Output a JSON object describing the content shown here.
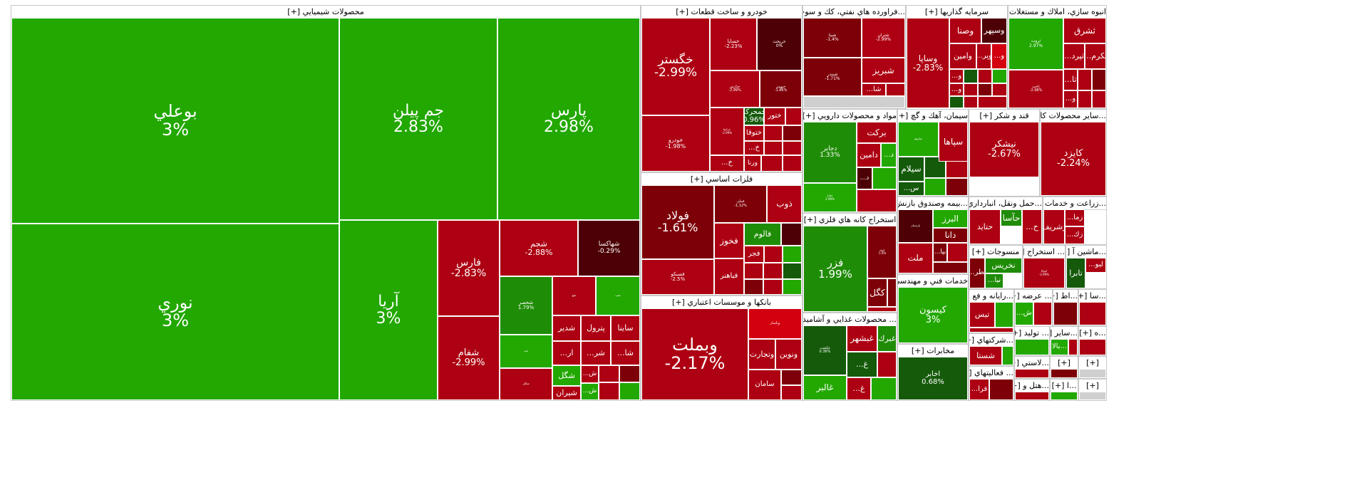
{
  "colors": {
    "strong_green": "#22a800",
    "green": "#1f8c07",
    "dark_green": "#145a0a",
    "strong_red": "#d30010",
    "red": "#ad0012",
    "dark_red": "#7d0008",
    "darkest_red": "#4d0005",
    "gray": "#cfcfcf"
  },
  "sectors": [
    {
      "id": "chem",
      "label": "محصولات شيميايي [+]",
      "tiles": [
        {
          "name": "بوعلي",
          "pct": "3%",
          "c": "strong_green"
        },
        {
          "name": "جم پيلن",
          "pct": "2.83%",
          "c": "strong_green"
        },
        {
          "name": "پارس",
          "pct": "2.98%",
          "c": "strong_green"
        },
        {
          "name": "نوري",
          "pct": "3%",
          "c": "strong_green"
        },
        {
          "name": "آريا",
          "pct": "3%",
          "c": "strong_green"
        },
        {
          "name": "فارس",
          "pct": "-2.83%",
          "c": "red"
        },
        {
          "name": "شفام",
          "pct": "-2.99%",
          "c": "red"
        },
        {
          "name": "شجم",
          "pct": "-2.88%",
          "c": "red"
        },
        {
          "name": "شهاكسا",
          "pct": "-0.29%",
          "c": "darkest_red"
        },
        {
          "name": "شخصر",
          "pct": "1.79%",
          "c": "green"
        },
        {
          "name": "شغ",
          "pct": "",
          "c": "red"
        },
        {
          "name": "شپ",
          "pct": "",
          "c": "strong_green"
        },
        {
          "name": "شد",
          "pct": "",
          "c": "strong_green"
        },
        {
          "name": "شكلر",
          "pct": "",
          "c": "red"
        },
        {
          "name": "شدير",
          "pct": "",
          "c": "red"
        },
        {
          "name": "پترول",
          "pct": "",
          "c": "red"
        },
        {
          "name": "ساينا",
          "pct": "",
          "c": "red"
        },
        {
          "name": "...ار",
          "pct": "",
          "c": "red"
        },
        {
          "name": "...شر",
          "pct": "",
          "c": "red"
        },
        {
          "name": "...شا",
          "pct": "",
          "c": "red"
        },
        {
          "name": "شگل",
          "pct": "",
          "c": "strong_green"
        },
        {
          "name": "شيران",
          "pct": "",
          "c": "red"
        },
        {
          "name": "...ش",
          "pct": "",
          "c": "red"
        },
        {
          "name": "...ش",
          "pct": "",
          "c": "strong_green"
        }
      ]
    },
    {
      "id": "auto",
      "label": "خودرو و ساخت قطعات [+]",
      "tiles": [
        {
          "name": "خگستر",
          "pct": "-2.99%",
          "c": "red"
        },
        {
          "name": "خساپا",
          "pct": "-2.23%",
          "c": "red"
        },
        {
          "name": "خريخت",
          "pct": "0%",
          "c": "darkest_red"
        },
        {
          "name": "خپارس",
          "pct": "-2.99%",
          "c": "red"
        },
        {
          "name": "خبهمن",
          "pct": "-1.86%",
          "c": "dark_red"
        },
        {
          "name": "خودرو",
          "pct": "-1.98%",
          "c": "red"
        },
        {
          "name": "خراميا",
          "pct": "-2.99%",
          "c": "red"
        },
        {
          "name": "خمحركه",
          "pct": "0.96%",
          "c": "dark_green"
        },
        {
          "name": "ختور",
          "pct": "",
          "c": "red"
        },
        {
          "name": "ختوقا",
          "pct": "",
          "c": "red"
        },
        {
          "name": "...خ",
          "pct": "",
          "c": "red"
        },
        {
          "name": "...خ",
          "pct": "",
          "c": "red"
        },
        {
          "name": "ورنا",
          "pct": "",
          "c": "red"
        },
        {
          "name": "...خا",
          "pct": "",
          "c": "red"
        }
      ]
    },
    {
      "id": "metal",
      "label": "فلزات اساسي [+]",
      "tiles": [
        {
          "name": "فولاد",
          "pct": "-1.61%",
          "c": "dark_red"
        },
        {
          "name": "فملي",
          "pct": "-1.12%",
          "c": "dark_red"
        },
        {
          "name": "ذوب",
          "pct": "",
          "c": "red"
        },
        {
          "name": "فخوز",
          "pct": "",
          "c": "red"
        },
        {
          "name": "فالوم",
          "pct": "",
          "c": "green"
        },
        {
          "name": "فجر",
          "pct": "",
          "c": "red"
        },
        {
          "name": "فسبكو",
          "pct": "-2.5%",
          "c": "red"
        },
        {
          "name": "فباهنر",
          "pct": "",
          "c": "red"
        }
      ]
    },
    {
      "id": "bank",
      "label": "بانكها و موسسات اعتباري [+]",
      "tiles": [
        {
          "name": "وبملت",
          "pct": "-2.17%",
          "c": "red"
        },
        {
          "name": "وتجارت",
          "pct": "",
          "c": "red"
        },
        {
          "name": "ونوين",
          "pct": "",
          "c": "red"
        },
        {
          "name": "سامان",
          "pct": "",
          "c": "red"
        },
        {
          "name": "وپاسار",
          "pct": "",
          "c": "strong_red"
        }
      ]
    },
    {
      "id": "oil",
      "label": "...فراورده هاي نفتي، كك و سوخت ه [+]",
      "tiles": [
        {
          "name": "شپنا",
          "pct": "-1.4%",
          "c": "dark_red"
        },
        {
          "name": "شبندر",
          "pct": "-1.71%",
          "c": "dark_red"
        },
        {
          "name": "شتران",
          "pct": "-2.99%",
          "c": "red"
        },
        {
          "name": "شبريز",
          "pct": "",
          "c": "red"
        },
        {
          "name": "...شا",
          "pct": "",
          "c": "red"
        }
      ]
    },
    {
      "id": "invest",
      "label": "سرمايه گذاريها [+]",
      "tiles": [
        {
          "name": "وساپا",
          "pct": "-2.83%",
          "c": "red"
        },
        {
          "name": "وصنا",
          "pct": "",
          "c": "red"
        },
        {
          "name": "وسپهر",
          "pct": "",
          "c": "darkest_red"
        },
        {
          "name": "وامين",
          "pct": "",
          "c": "red"
        },
        {
          "name": "...وپر",
          "pct": "",
          "c": "red"
        },
        {
          "name": "...و",
          "pct": "",
          "c": "strong_red"
        },
        {
          "name": "...و",
          "pct": "",
          "c": "red"
        },
        {
          "name": "...و",
          "pct": "",
          "c": "red"
        }
      ]
    },
    {
      "id": "build",
      "label": "انبوه سازي، املاك و مستغلات [+]",
      "tiles": [
        {
          "name": "ثروت",
          "pct": "2.97%",
          "c": "strong_green"
        },
        {
          "name": "ثشرق",
          "pct": "",
          "c": "red"
        },
        {
          "name": "...ثپرد",
          "pct": "",
          "c": "red"
        },
        {
          "name": "...ثكرم",
          "pct": "",
          "c": "red"
        },
        {
          "name": "ثاخت",
          "pct": "-2.98%",
          "c": "red"
        },
        {
          "name": "...ثا",
          "pct": "",
          "c": "red"
        },
        {
          "name": "...و",
          "pct": "",
          "c": "red"
        }
      ]
    },
    {
      "id": "pharma",
      "label": "مواد و محصولات دارويي [+]",
      "tiles": [
        {
          "name": "دجابر",
          "pct": "1.33%",
          "c": "green"
        },
        {
          "name": "بركت",
          "pct": "",
          "c": "red"
        },
        {
          "name": "دامين",
          "pct": "",
          "c": "red"
        },
        {
          "name": "...د",
          "pct": "",
          "c": "strong_green"
        },
        {
          "name": "دفارا",
          "pct": "2.99%",
          "c": "strong_green"
        },
        {
          "name": "...د",
          "pct": "",
          "c": "darkest_red"
        }
      ]
    },
    {
      "id": "cement",
      "label": "سيمان، آهك و گچ [+]",
      "tiles": [
        {
          "name": "ساروم",
          "pct": "",
          "c": "strong_green"
        },
        {
          "name": "سپاها",
          "pct": "",
          "c": "red"
        },
        {
          "name": "سيلام",
          "pct": "",
          "c": "dark_green"
        },
        {
          "name": "...س",
          "pct": "",
          "c": "dark_green"
        }
      ]
    },
    {
      "id": "sugar",
      "label": "قند و شكر [+]",
      "tiles": [
        {
          "name": "نيشكر",
          "pct": "-2.67%",
          "c": "red"
        }
      ]
    },
    {
      "id": "other_prod",
      "label": "...ساير محصولات كا [+]",
      "tiles": [
        {
          "name": "كايزد",
          "pct": "-2.24%",
          "c": "red"
        }
      ]
    },
    {
      "id": "mining",
      "label": "استخراج كانه هاي فلزي [+]",
      "tiles": [
        {
          "name": "فزر",
          "pct": "1.99%",
          "c": "green"
        },
        {
          "name": "كچاد",
          "pct": "-1.6%",
          "c": "dark_red"
        },
        {
          "name": "كگل",
          "pct": "",
          "c": "dark_red"
        }
      ]
    },
    {
      "id": "insur",
      "label": "...بيمه وصندوق بازنش [+]",
      "tiles": [
        {
          "name": "پارسيان",
          "pct": "",
          "c": "darkest_red"
        },
        {
          "name": "البرز",
          "pct": "",
          "c": "strong_green"
        },
        {
          "name": "دانا",
          "pct": "",
          "c": "dark_red"
        },
        {
          "name": "ملت",
          "pct": "",
          "c": "red"
        },
        {
          "name": "...بپا",
          "pct": "",
          "c": "dark_red"
        }
      ]
    },
    {
      "id": "transport",
      "label": "...حمل ونقل، انبارداري و [+]",
      "tiles": [
        {
          "name": "حآسا",
          "pct": "",
          "c": "green"
        },
        {
          "name": "حتايد",
          "pct": "",
          "c": "red"
        },
        {
          "name": "...ح",
          "pct": "",
          "c": "red"
        }
      ]
    },
    {
      "id": "agri",
      "label": "...زراعت و خدمات و [+]",
      "tiles": [
        {
          "name": "زشريف",
          "pct": "",
          "c": "red"
        },
        {
          "name": "...زما",
          "pct": "",
          "c": "red"
        },
        {
          "name": "...زك",
          "pct": "",
          "c": "red"
        }
      ]
    },
    {
      "id": "engineering",
      "label": "خدمات فني و مهندسي [+]",
      "tiles": [
        {
          "name": "كيسون",
          "pct": "3%",
          "c": "strong_green"
        }
      ]
    },
    {
      "id": "textile",
      "label": "منسوجات [+]",
      "tiles": [
        {
          "name": "نخريس",
          "pct": "",
          "c": "green"
        },
        {
          "name": "...نطر",
          "pct": "",
          "c": "dark_red"
        },
        {
          "name": "...نبا",
          "pct": "",
          "c": "green"
        }
      ]
    },
    {
      "id": "extract",
      "label": "... استخراج [+]",
      "tiles": [
        {
          "name": "كتوكا",
          "pct": "-2.99%",
          "c": "red"
        }
      ]
    },
    {
      "id": "machine",
      "label": "...ماشين آ [+]",
      "tiles": [
        {
          "name": "تابرا",
          "pct": "",
          "c": "dark_green"
        },
        {
          "name": "...لبو",
          "pct": "",
          "c": "red"
        }
      ]
    },
    {
      "id": "food",
      "label": "... محصولات غذايي و آشاميدني [+]",
      "tiles": [
        {
          "name": "غكشت",
          "pct": "0.36%",
          "c": "dark_green"
        },
        {
          "name": "غبشهر",
          "pct": "",
          "c": "red"
        },
        {
          "name": "غبرك",
          "pct": "",
          "c": "green"
        },
        {
          "name": "غالبر",
          "pct": "",
          "c": "strong_green"
        },
        {
          "name": "...غ",
          "pct": "",
          "c": "dark_green"
        },
        {
          "name": "...غ",
          "pct": "",
          "c": "red"
        }
      ]
    },
    {
      "id": "telecom",
      "label": "مخابرات [+]",
      "tiles": [
        {
          "name": "اخابر",
          "pct": "0.68%",
          "c": "dark_green"
        }
      ]
    },
    {
      "id": "computer",
      "label": "...رايانه و فع [+]",
      "tiles": [
        {
          "name": "تيس",
          "pct": "",
          "c": "red"
        }
      ]
    },
    {
      "id": "multi",
      "label": "...شركتهاي [+]",
      "tiles": [
        {
          "name": "شستا",
          "pct": "",
          "c": "red"
        }
      ]
    },
    {
      "id": "activity",
      "label": "... فعاليتهاي [+]",
      "tiles": [
        {
          "name": "...فرا",
          "pct": "",
          "c": "red"
        }
      ]
    },
    {
      "id": "supply",
      "label": "... عرضه [+]",
      "tiles": [
        {
          "name": "...ش",
          "pct": "",
          "c": "strong_green"
        }
      ]
    },
    {
      "id": "produce",
      "label": "... توليد [+]",
      "tiles": []
    },
    {
      "id": "plastic",
      "label": "...لاستي [+]",
      "tiles": []
    },
    {
      "id": "other",
      "label": "...ساير [+]",
      "tiles": [
        {
          "name": "بالا...",
          "pct": "",
          "c": "strong_green"
        }
      ]
    },
    {
      "id": "hotel",
      "label": "...هتل و [+]",
      "tiles": []
    },
    {
      "id": "s_a",
      "label": "...اط [+]",
      "tiles": []
    },
    {
      "id": "s_b",
      "label": "...سا [+]",
      "tiles": []
    },
    {
      "id": "s_c",
      "label": "...ه [+]",
      "tiles": []
    },
    {
      "id": "s_d",
      "label": "...ا [+]",
      "tiles": []
    },
    {
      "id": "s_e",
      "label": "[+]",
      "tiles": []
    },
    {
      "id": "s_f",
      "label": "[+]",
      "tiles": []
    },
    {
      "id": "s_g",
      "label": "[+]",
      "tiles": []
    }
  ]
}
